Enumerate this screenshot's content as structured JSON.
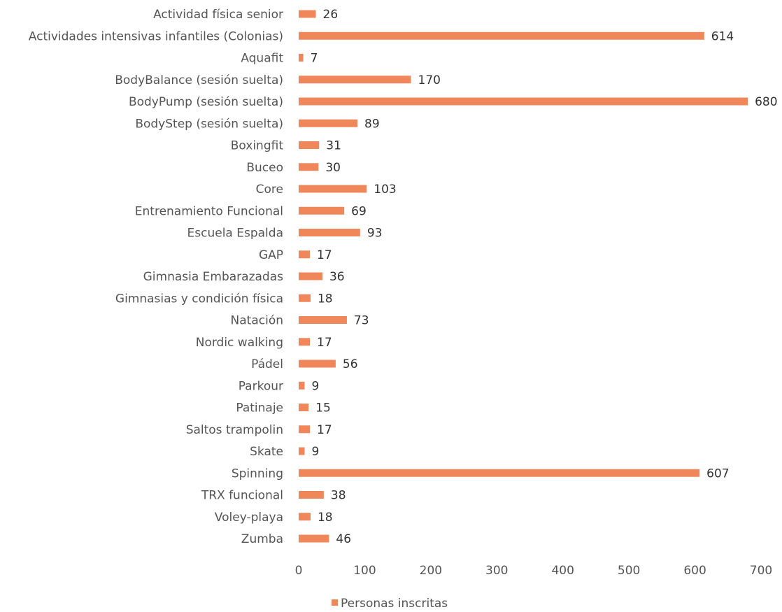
{
  "chart_data": {
    "type": "bar",
    "orientation": "horizontal",
    "categories": [
      "Actividad física senior",
      "Actividades intensivas infantiles (Colonias)",
      "Aquafit",
      "BodyBalance (sesión suelta)",
      "BodyPump (sesión suelta)",
      "BodyStep (sesión suelta)",
      "Boxingfit",
      "Buceo",
      "Core",
      "Entrenamiento Funcional",
      "Escuela Espalda",
      "GAP",
      "Gimnasia Embarazadas",
      "Gimnasias y condición física",
      "Natación",
      "Nordic walking",
      "Pádel",
      "Parkour",
      "Patinaje",
      "Saltos trampolin",
      "Skate",
      "Spinning",
      "TRX funcional",
      "Voley-playa",
      "Zumba"
    ],
    "series": [
      {
        "name": "Personas inscritas",
        "color": "#F0875A",
        "values": [
          26,
          614,
          7,
          170,
          680,
          89,
          31,
          30,
          103,
          69,
          93,
          17,
          36,
          18,
          73,
          17,
          56,
          9,
          15,
          17,
          9,
          607,
          38,
          18,
          46
        ]
      }
    ],
    "xlim": [
      0,
      700
    ],
    "xticks": [
      0,
      100,
      200,
      300,
      400,
      500,
      600,
      700
    ],
    "grid": false,
    "legend_position": "bottom"
  }
}
